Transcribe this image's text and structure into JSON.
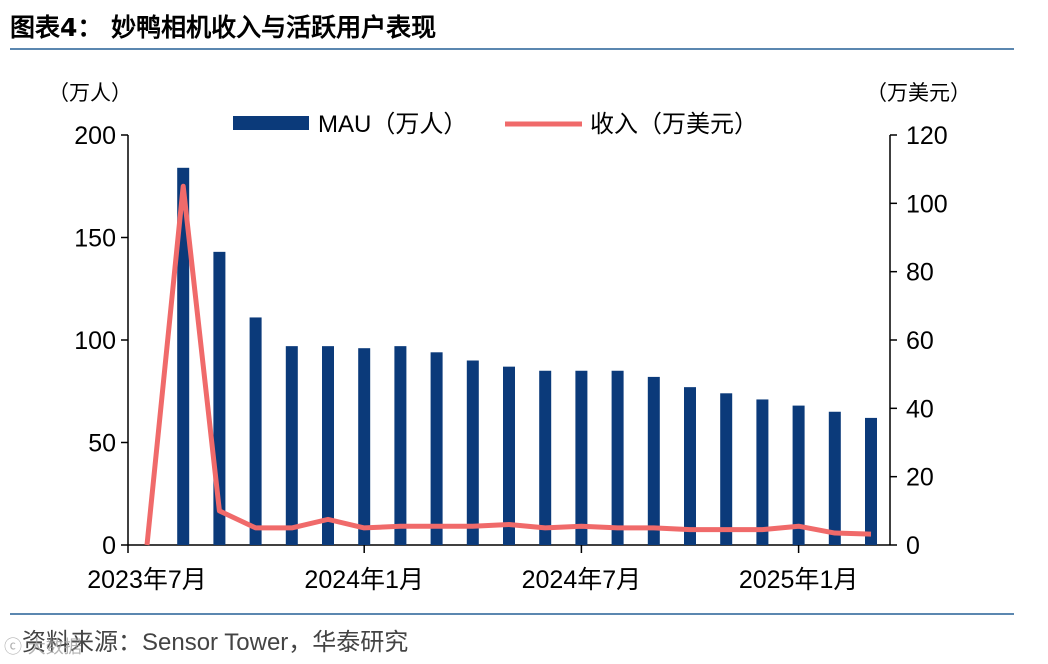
{
  "header": {
    "title": "图表4： 妙鸭相机收入与活跃用户表现"
  },
  "footer": {
    "source": "资料来源：Sensor Tower，华泰研究",
    "watermark": "ⓒ 大数据"
  },
  "colors": {
    "bar": "#0b3a7a",
    "line": "#f06a6a",
    "rule": "#5b87b0"
  },
  "chart_data": {
    "type": "bar+line",
    "title": "妙鸭相机收入与活跃用户表现",
    "left_unit": "（万人）",
    "right_unit": "（万美元）",
    "ylim_left": [
      0,
      200
    ],
    "ylim_right": [
      0,
      120
    ],
    "yticks_left": [
      "0",
      "50",
      "100",
      "150",
      "200"
    ],
    "yticks_right": [
      "0",
      "20",
      "40",
      "60",
      "80",
      "100",
      "120"
    ],
    "x_tick_labels": [
      {
        "index": 0,
        "label": "2023年7月"
      },
      {
        "index": 6,
        "label": "2024年1月"
      },
      {
        "index": 12,
        "label": "2024年7月"
      },
      {
        "index": 18,
        "label": "2025年1月"
      }
    ],
    "categories": [
      "2023-07",
      "2023-08",
      "2023-09",
      "2023-10",
      "2023-11",
      "2023-12",
      "2024-01",
      "2024-02",
      "2024-03",
      "2024-04",
      "2024-05",
      "2024-06",
      "2024-07",
      "2024-08",
      "2024-09",
      "2024-10",
      "2024-11",
      "2024-12",
      "2025-01",
      "2025-02",
      "2025-03"
    ],
    "series": [
      {
        "name": "MAU（万人）",
        "axis": "left",
        "kind": "bar",
        "values": [
          null,
          184,
          143,
          111,
          97,
          97,
          96,
          97,
          94,
          90,
          87,
          85,
          85,
          85,
          82,
          77,
          74,
          71,
          68,
          65,
          62
        ]
      },
      {
        "name": "收入（万美元）",
        "axis": "right",
        "kind": "line",
        "values": [
          0,
          105,
          10,
          5,
          5,
          7.5,
          5,
          5.5,
          5.5,
          5.5,
          6,
          5,
          5.5,
          5,
          5,
          4.5,
          4.5,
          4.5,
          5.5,
          3.5,
          3.2
        ]
      }
    ],
    "legend": {
      "position": "top-center"
    }
  }
}
